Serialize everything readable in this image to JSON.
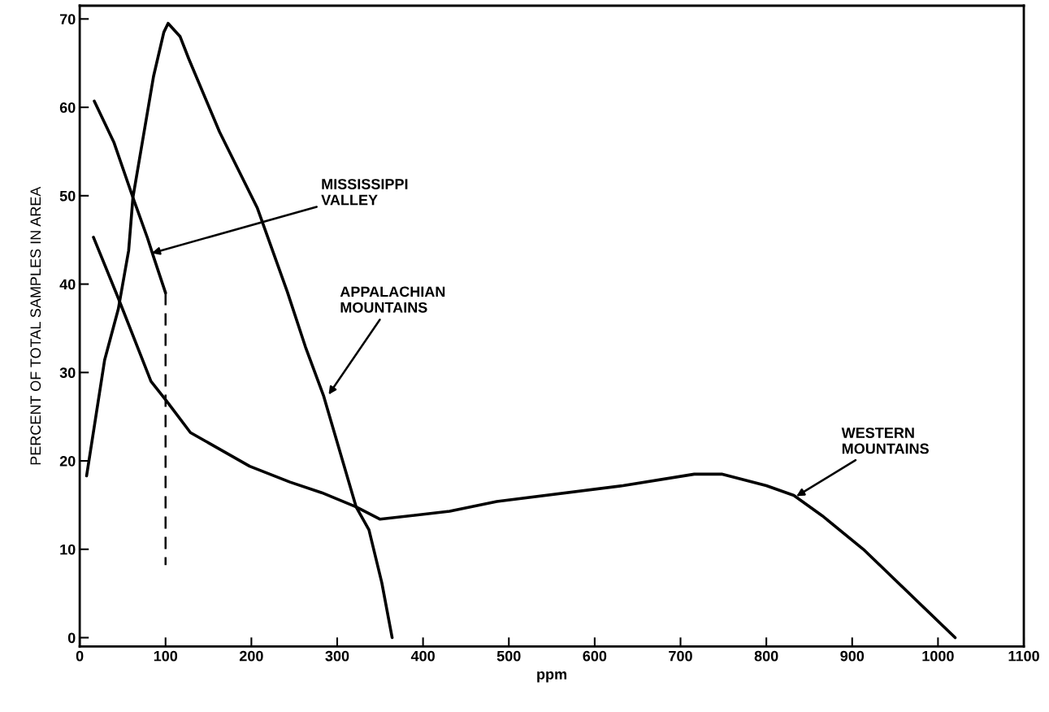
{
  "chart_data": {
    "type": "line",
    "xlabel": "ppm",
    "ylabel": "PERCENT OF TOTAL SAMPLES IN AREA",
    "xlim": [
      0,
      1100
    ],
    "ylim": [
      -1,
      71.5
    ],
    "xticks": [
      0,
      100,
      200,
      300,
      400,
      500,
      600,
      700,
      800,
      900,
      1000,
      1100
    ],
    "yticks": [
      0,
      10,
      20,
      30,
      40,
      50,
      60,
      70
    ],
    "grid": false,
    "line_style": "solid",
    "series": [
      {
        "color": "#000000",
        "x": [
          8,
          29,
          45,
          57,
          62,
          86,
          98,
          103,
          117,
          127,
          163,
          207,
          242,
          263,
          284,
          322,
          337,
          352,
          364
        ],
        "values": [
          18.3,
          31.4,
          37.2,
          43.8,
          49.8,
          63.5,
          68.5,
          69.5,
          68,
          65.5,
          57.2,
          48.6,
          39.1,
          32.9,
          27.4,
          14.8,
          12.2,
          6.2,
          0
        ]
      },
      {
        "color": "#000000",
        "x": [
          17,
          40,
          62,
          79,
          86,
          100
        ],
        "values": [
          60.7,
          56.0,
          49.8,
          45.2,
          43.1,
          39
        ]
      },
      {
        "color": "#000000",
        "x": [
          100,
          100
        ],
        "values": [
          39,
          8.2
        ],
        "line_style": "dashed"
      },
      {
        "color": "#000000",
        "x": [
          16,
          45,
          83,
          101,
          129,
          198,
          245,
          282,
          322,
          350,
          431,
          486,
          633,
          716,
          748,
          800,
          832,
          865,
          913,
          1020
        ],
        "values": [
          45.3,
          38.4,
          29.0,
          26.8,
          23.2,
          19.4,
          17.6,
          16.4,
          14.8,
          13.4,
          14.3,
          15.4,
          17.2,
          18.5,
          18.5,
          17.2,
          16.1,
          13.8,
          10,
          0
        ]
      }
    ],
    "annotations": [
      {
        "text": "MISSISSIPPI\nVALLEY",
        "x": 84,
        "y": 43.5
      },
      {
        "text": "APPALACHIAN\nMOUNTAINS",
        "x": 290,
        "y": 27.5
      },
      {
        "text": "WESTERN\nMOUNTAINS",
        "x": 835,
        "y": 16
      }
    ]
  }
}
